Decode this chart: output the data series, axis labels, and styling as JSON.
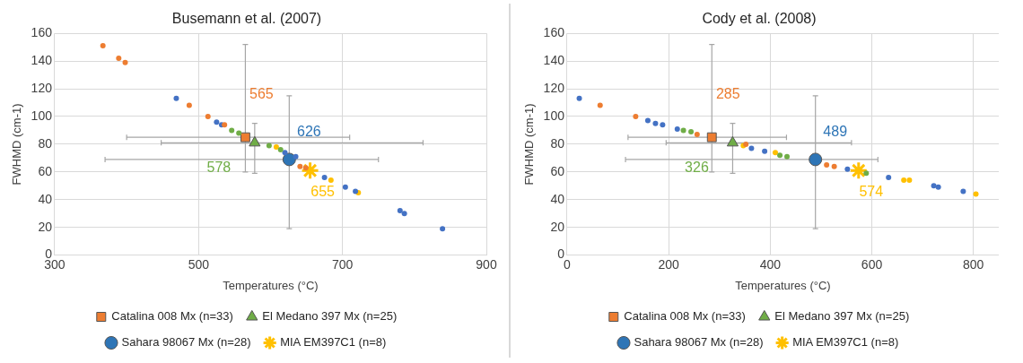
{
  "chart_data": [
    {
      "type": "scatter",
      "title": "Busemann et al. (2007)",
      "xlabel": "Temperatures (°C)",
      "ylabel": "FWHMD (cm-1)",
      "xlim": [
        300,
        900
      ],
      "xticks": [
        300,
        500,
        700,
        900
      ],
      "ylim": [
        0,
        160
      ],
      "yticks": [
        0,
        20,
        40,
        60,
        80,
        100,
        120,
        140,
        160
      ],
      "grid": true,
      "legend": "bottom",
      "series": [
        {
          "type": "scatter",
          "marker": "circle",
          "color": "#ed7d31",
          "x": [
            367,
            389,
            398,
            487,
            513,
            536,
            641,
            649
          ],
          "values": [
            151,
            142,
            139,
            108,
            100,
            94,
            64,
            63
          ]
        },
        {
          "type": "scatter",
          "marker": "circle",
          "color": "#70ad47",
          "x": [
            546,
            556,
            598,
            614
          ],
          "values": [
            90,
            88,
            79,
            76
          ]
        },
        {
          "type": "scatter",
          "marker": "circle",
          "color": "#4472c4",
          "x": [
            469,
            525,
            532,
            620,
            635,
            675,
            704,
            718,
            780,
            786,
            839
          ],
          "values": [
            113,
            96,
            94,
            74,
            71,
            56,
            49,
            46,
            32,
            30,
            19
          ]
        },
        {
          "type": "scatter",
          "marker": "circle",
          "color": "#ffc000",
          "x": [
            608,
            684,
            722
          ],
          "values": [
            78,
            54,
            45
          ]
        },
        {
          "type": "scatter",
          "marker": "square",
          "name": "Catalina 008 Mx (n=33)",
          "color": "#ed7d31",
          "x": [
            565
          ],
          "values": [
            85
          ],
          "errors": [
            [
              60,
              152
            ]
          ],
          "xerrors": [
            [
              400,
              710
            ]
          ]
        },
        {
          "type": "scatter",
          "marker": "triangle",
          "name": "El Medano 397 Mx (n=25)",
          "color": "#70ad47",
          "x": [
            578
          ],
          "values": [
            81
          ],
          "errors": [
            [
              59,
              95
            ]
          ],
          "xerrors": [
            [
              448,
              812
            ]
          ]
        },
        {
          "type": "scatter",
          "marker": "circle",
          "name": "Sahara 98067 Mx (n=28)",
          "color": "#2e75b6",
          "x": [
            626
          ],
          "values": [
            69
          ],
          "errors": [
            [
              19,
              115
            ]
          ],
          "xerrors": [
            [
              370,
              750
            ]
          ]
        },
        {
          "type": "scatter",
          "marker": "cross",
          "name": "MIA EM397C1 (n=8)",
          "color": "#ffc000",
          "x": [
            655
          ],
          "values": [
            61
          ]
        }
      ],
      "annotations": [
        {
          "text": "565",
          "x": 565,
          "y": 85
        },
        {
          "text": "578",
          "x": 578,
          "y": 81
        },
        {
          "text": "626",
          "x": 626,
          "y": 69
        },
        {
          "text": "655",
          "x": 655,
          "y": 61
        }
      ]
    },
    {
      "type": "scatter",
      "title": "Cody et al. (2008)",
      "xlabel": "Temperatures (°C)",
      "ylabel": "FWHMD (cm-1)",
      "xlim": [
        0,
        850
      ],
      "xticks": [
        0,
        200,
        400,
        600,
        800
      ],
      "ylim": [
        0,
        160
      ],
      "yticks": [
        0,
        20,
        40,
        60,
        80,
        100,
        120,
        140,
        160
      ],
      "grid": true,
      "legend": "bottom",
      "series": [
        {
          "type": "scatter",
          "marker": "circle",
          "color": "#ed7d31",
          "x": [
            65,
            135,
            256,
            352,
            511,
            526
          ],
          "values": [
            108,
            100,
            87,
            80,
            65,
            64
          ]
        },
        {
          "type": "scatter",
          "marker": "circle",
          "color": "#70ad47",
          "x": [
            229,
            244,
            419,
            433,
            589
          ],
          "values": [
            90,
            89,
            72,
            71,
            59
          ]
        },
        {
          "type": "scatter",
          "marker": "circle",
          "color": "#4472c4",
          "x": [
            24,
            159,
            174,
            188,
            217,
            363,
            389,
            552,
            633,
            722,
            731,
            780
          ],
          "values": [
            113,
            97,
            95,
            94,
            91,
            77,
            75,
            62,
            56,
            50,
            49,
            46
          ]
        },
        {
          "type": "scatter",
          "marker": "circle",
          "color": "#ffc000",
          "x": [
            347,
            410,
            663,
            674,
            805
          ],
          "values": [
            79,
            74,
            54,
            54,
            44
          ]
        },
        {
          "type": "scatter",
          "marker": "square",
          "name": "Catalina 008 Mx (n=33)",
          "color": "#ed7d31",
          "x": [
            285
          ],
          "values": [
            85
          ],
          "errors": [
            [
              60,
              152
            ]
          ],
          "xerrors": [
            [
              120,
              432
            ]
          ]
        },
        {
          "type": "scatter",
          "marker": "triangle",
          "name": "El Medano 397 Mx (n=25)",
          "color": "#70ad47",
          "x": [
            326
          ],
          "values": [
            81
          ],
          "errors": [
            [
              59,
              95
            ]
          ],
          "xerrors": [
            [
              195,
              560
            ]
          ]
        },
        {
          "type": "scatter",
          "marker": "circle",
          "name": "Sahara 98067 Mx (n=28)",
          "color": "#2e75b6",
          "x": [
            489
          ],
          "values": [
            69
          ],
          "errors": [
            [
              19,
              115
            ]
          ],
          "xerrors": [
            [
              115,
              612
            ]
          ]
        },
        {
          "type": "scatter",
          "marker": "cross",
          "name": "MIA EM397C1 (n=8)",
          "color": "#ffc000",
          "x": [
            574
          ],
          "values": [
            61
          ]
        }
      ],
      "annotations": [
        {
          "text": "285",
          "x": 285,
          "y": 85
        },
        {
          "text": "326",
          "x": 326,
          "y": 81
        },
        {
          "text": "489",
          "x": 489,
          "y": 69
        },
        {
          "text": "574",
          "x": 574,
          "y": 61
        }
      ]
    }
  ]
}
